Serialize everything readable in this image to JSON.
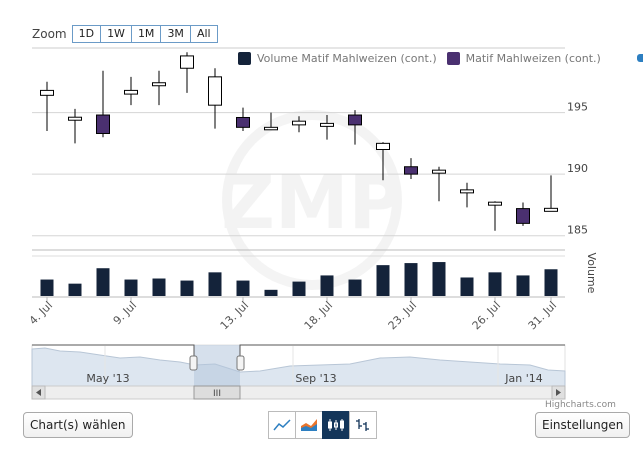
{
  "zoom": {
    "label": "Zoom",
    "buttons": [
      "1D",
      "1W",
      "1M",
      "3M",
      "All"
    ]
  },
  "legend": [
    {
      "label": "Volume Matif Mahlweizen (cont.)",
      "color": "#14233a"
    },
    {
      "label": "Matif Mahlweizen (cont.)",
      "color": "#4a3070"
    }
  ],
  "chart_data": {
    "type": "candlestick",
    "x_ticks": [
      "4. Jul",
      "9. Jul",
      "13. Jul",
      "18. Jul",
      "23. Jul",
      "26. Jul",
      "31. Jul"
    ],
    "y_ticks": [
      195,
      190,
      185
    ],
    "ylabel_volume": "Volume",
    "ylim": [
      184,
      200
    ],
    "candles": [
      {
        "open": 196.4,
        "close": 196.8,
        "high": 197.5,
        "low": 193.5
      },
      {
        "open": 194.5,
        "close": 194.5,
        "high": 195.3,
        "low": 192.5
      },
      {
        "open": 194.8,
        "close": 193.3,
        "high": 198.4,
        "low": 193.0
      },
      {
        "open": 196.5,
        "close": 196.8,
        "high": 197.9,
        "low": 195.6
      },
      {
        "open": 197.3,
        "close": 197.3,
        "high": 198.4,
        "low": 195.6
      },
      {
        "open": 198.6,
        "close": 199.6,
        "high": 199.9,
        "low": 196.6
      },
      {
        "open": 195.6,
        "close": 197.9,
        "high": 198.6,
        "low": 193.7
      },
      {
        "open": 194.6,
        "close": 193.8,
        "high": 195.4,
        "low": 193.5
      },
      {
        "open": 193.6,
        "close": 193.8,
        "high": 195.0,
        "low": 193.6
      },
      {
        "open": 194.0,
        "close": 194.3,
        "high": 194.7,
        "low": 193.4
      },
      {
        "open": 194.0,
        "close": 194.0,
        "high": 194.8,
        "low": 192.8
      },
      {
        "open": 194.8,
        "close": 194.0,
        "high": 195.2,
        "low": 192.4
      },
      {
        "open": 192.0,
        "close": 192.5,
        "high": 192.6,
        "low": 189.5
      },
      {
        "open": 190.6,
        "close": 190.0,
        "high": 191.3,
        "low": 189.6
      },
      {
        "open": 190.2,
        "close": 190.2,
        "high": 190.6,
        "low": 187.8
      },
      {
        "open": 188.6,
        "close": 188.6,
        "high": 189.3,
        "low": 187.3
      },
      {
        "open": 187.6,
        "close": 187.6,
        "high": 187.8,
        "low": 185.4
      },
      {
        "open": 187.2,
        "close": 186.0,
        "high": 187.7,
        "low": 185.8
      },
      {
        "open": 187.1,
        "close": 187.1,
        "high": 189.9,
        "low": 187.1
      }
    ],
    "volumes": [
      16,
      12,
      27,
      16,
      17,
      15,
      23,
      15,
      6,
      14,
      20,
      16,
      30,
      32,
      33,
      18,
      23,
      20,
      26
    ],
    "up_color": "#ffffff",
    "down_color": "#4a3070",
    "volume_color": "#14233a"
  },
  "navigator": {
    "labels": [
      "May '13",
      "Sep '13",
      "Jan '14"
    ],
    "scroll_grip": "III"
  },
  "credit": "Highcharts.com",
  "buttons": {
    "chart": "Chart(s) wählen",
    "settings": "Einstellungen"
  },
  "chart_type_icons": [
    "line-chart-icon",
    "area-chart-icon",
    "candlestick-icon",
    "ohlc-icon"
  ],
  "active_chart_type": "candlestick-icon"
}
